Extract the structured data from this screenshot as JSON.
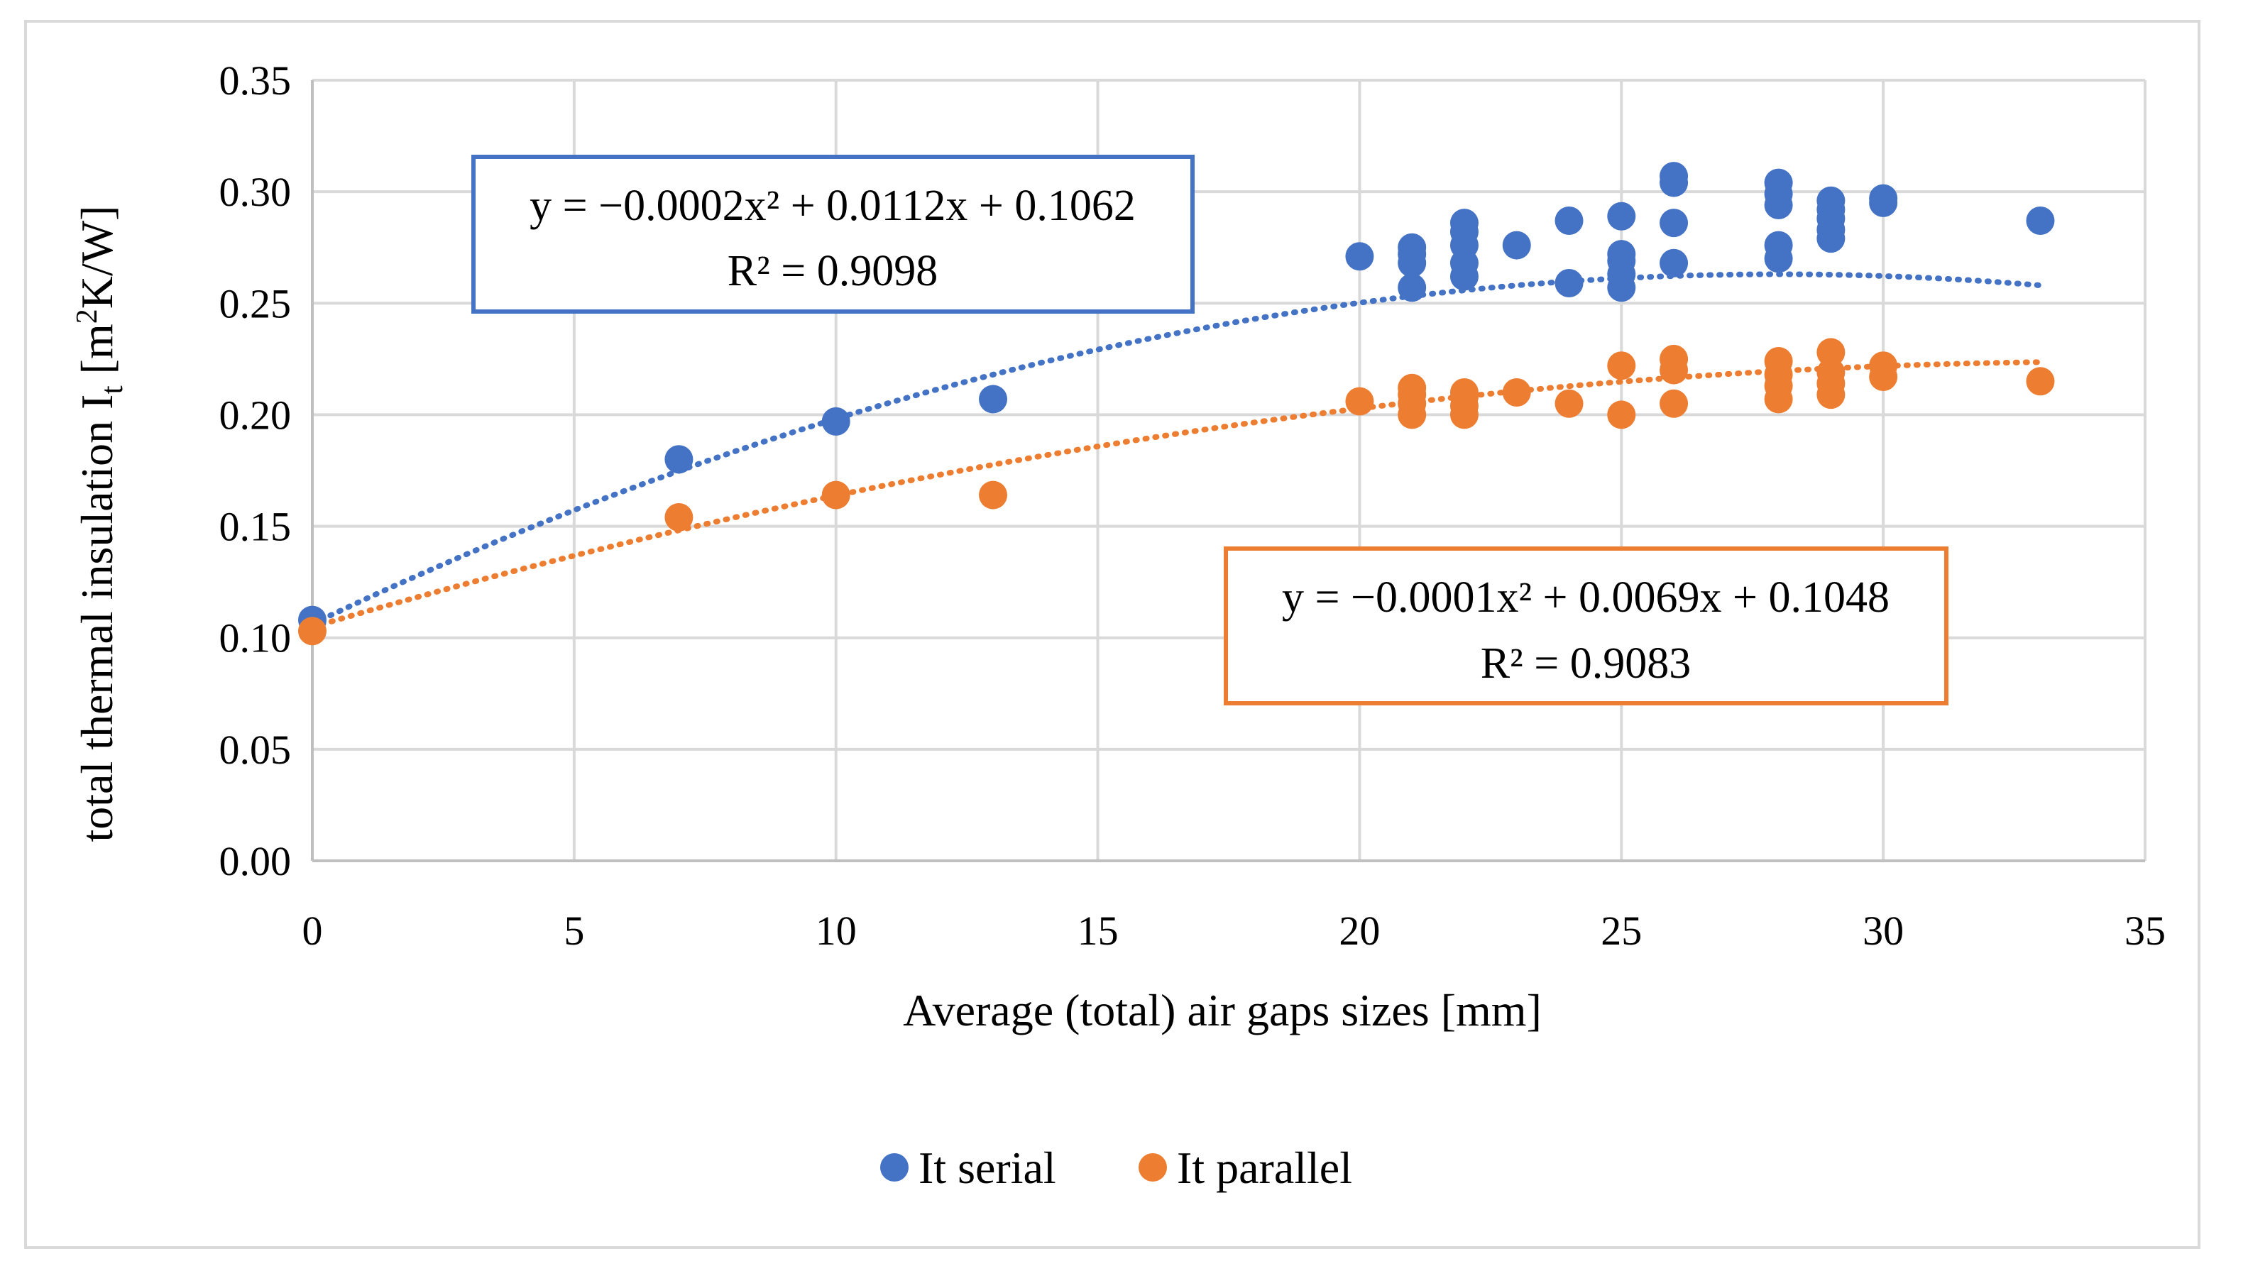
{
  "chart_data": {
    "type": "scatter",
    "title": "",
    "xlabel": "Average (total) air gaps sizes [mm]",
    "ylabel": {
      "prefix": "total thermal insulation I",
      "subscript": "t",
      "unit_pre": " [m",
      "unit_sup": "2",
      "unit_post": "K/W]"
    },
    "xlim": [
      0,
      35
    ],
    "ylim": [
      0,
      0.35
    ],
    "x_ticks": [
      "0",
      "5",
      "10",
      "15",
      "20",
      "25",
      "30",
      "35"
    ],
    "x_tick_values": [
      0,
      5,
      10,
      15,
      20,
      25,
      30,
      35
    ],
    "y_ticks": [
      "0.00",
      "0.05",
      "0.10",
      "0.15",
      "0.20",
      "0.25",
      "0.30",
      "0.35"
    ],
    "y_tick_values": [
      0,
      0.05,
      0.1,
      0.15,
      0.2,
      0.25,
      0.3,
      0.35
    ],
    "grid": true,
    "legend_position": "bottom",
    "series": [
      {
        "name": "It serial",
        "color": "#4472C4",
        "points": [
          [
            0,
            0.108
          ],
          [
            7,
            0.18
          ],
          [
            10,
            0.197
          ],
          [
            13,
            0.207
          ],
          [
            20,
            0.271
          ],
          [
            21,
            0.257
          ],
          [
            21,
            0.268
          ],
          [
            21,
            0.272
          ],
          [
            21,
            0.275
          ],
          [
            22,
            0.262
          ],
          [
            22,
            0.268
          ],
          [
            22,
            0.276
          ],
          [
            22,
            0.282
          ],
          [
            22,
            0.286
          ],
          [
            23,
            0.276
          ],
          [
            24,
            0.259
          ],
          [
            24,
            0.287
          ],
          [
            25,
            0.257
          ],
          [
            25,
            0.263
          ],
          [
            25,
            0.269
          ],
          [
            25,
            0.272
          ],
          [
            25,
            0.289
          ],
          [
            26,
            0.268
          ],
          [
            26,
            0.286
          ],
          [
            26,
            0.304
          ],
          [
            26,
            0.307
          ],
          [
            28,
            0.27
          ],
          [
            28,
            0.276
          ],
          [
            28,
            0.294
          ],
          [
            28,
            0.299
          ],
          [
            28,
            0.304
          ],
          [
            29,
            0.279
          ],
          [
            29,
            0.283
          ],
          [
            29,
            0.288
          ],
          [
            29,
            0.292
          ],
          [
            29,
            0.296
          ],
          [
            30,
            0.295
          ],
          [
            30,
            0.297
          ],
          [
            33,
            0.287
          ]
        ],
        "trendline": {
          "type": "polynomial",
          "coefficients": [
            -0.0002,
            0.0112,
            0.1062
          ],
          "equation": "y = −0.0002x² + 0.0112x + 0.1062",
          "r_squared": "R² = 0.9098"
        }
      },
      {
        "name": "It parallel",
        "color": "#ED7D31",
        "points": [
          [
            0,
            0.103
          ],
          [
            7,
            0.154
          ],
          [
            10,
            0.164
          ],
          [
            13,
            0.164
          ],
          [
            20,
            0.206
          ],
          [
            21,
            0.2
          ],
          [
            21,
            0.205
          ],
          [
            21,
            0.209
          ],
          [
            21,
            0.212
          ],
          [
            22,
            0.2
          ],
          [
            22,
            0.204
          ],
          [
            22,
            0.208
          ],
          [
            22,
            0.21
          ],
          [
            23,
            0.21
          ],
          [
            24,
            0.205
          ],
          [
            25,
            0.2
          ],
          [
            25,
            0.222
          ],
          [
            26,
            0.205
          ],
          [
            26,
            0.22
          ],
          [
            26,
            0.225
          ],
          [
            28,
            0.207
          ],
          [
            28,
            0.213
          ],
          [
            28,
            0.218
          ],
          [
            28,
            0.224
          ],
          [
            29,
            0.209
          ],
          [
            29,
            0.214
          ],
          [
            29,
            0.219
          ],
          [
            29,
            0.228
          ],
          [
            30,
            0.217
          ],
          [
            30,
            0.222
          ],
          [
            33,
            0.215
          ]
        ],
        "trendline": {
          "type": "polynomial",
          "coefficients": [
            -0.0001,
            0.0069,
            0.1048
          ],
          "equation": "y = −0.0001x² + 0.0069x + 0.1048",
          "r_squared": "R² = 0.9083"
        }
      }
    ]
  }
}
